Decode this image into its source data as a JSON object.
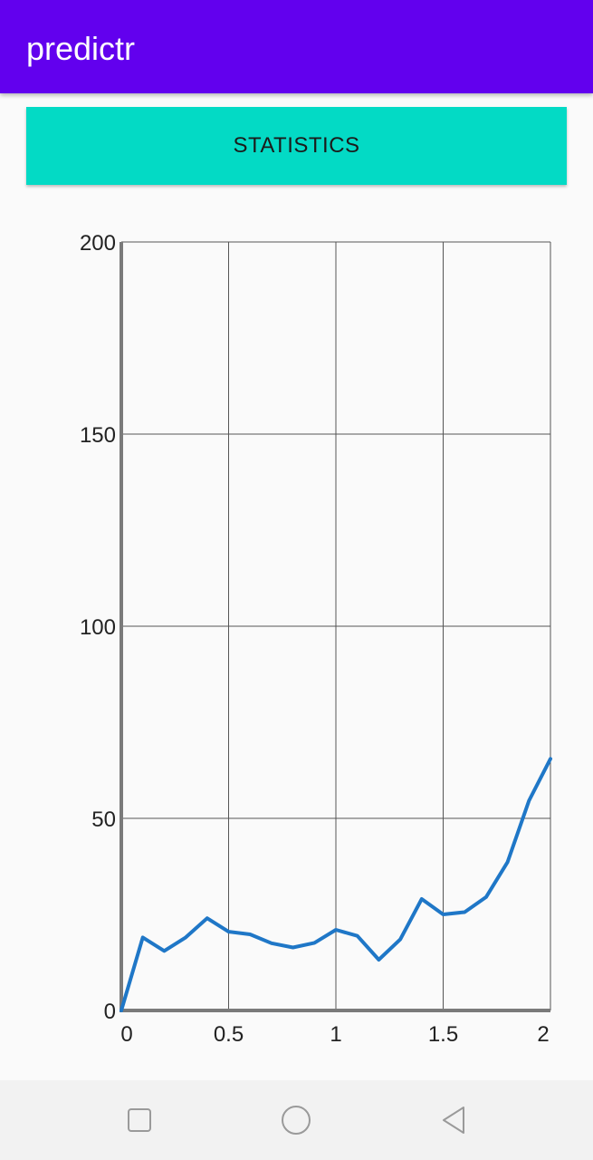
{
  "app_bar": {
    "title": "predictr",
    "color": "#6200ee"
  },
  "statistics_button": {
    "label": "STATISTICS",
    "color": "#03dac5"
  },
  "chart_data": {
    "type": "line",
    "x_ticks": [
      "0",
      "0.5",
      "1",
      "1.5",
      "2"
    ],
    "y_ticks": [
      "0",
      "50",
      "100",
      "150",
      "200"
    ],
    "xlim": [
      0,
      2
    ],
    "ylim": [
      0,
      200
    ],
    "grid": true,
    "line_color": "#1f77c7",
    "series": [
      {
        "x": [
          0,
          0.1,
          0.2,
          0.3,
          0.4,
          0.5,
          0.6,
          0.7,
          0.8,
          0.9,
          1.0,
          1.1,
          1.2,
          1.3,
          1.4,
          1.5,
          1.6,
          1.7,
          1.8,
          1.9,
          2.0
        ],
        "y": [
          0,
          19,
          15.5,
          19,
          24,
          20.5,
          19.8,
          17.5,
          16.4,
          17.6,
          21,
          19.4,
          13.2,
          18.5,
          29,
          25,
          25.6,
          29.5,
          38.6,
          54.6,
          65.5
        ]
      }
    ]
  },
  "nav_bar": {
    "recents_icon": "square-icon",
    "home_icon": "circle-icon",
    "back_icon": "triangle-back-icon"
  }
}
